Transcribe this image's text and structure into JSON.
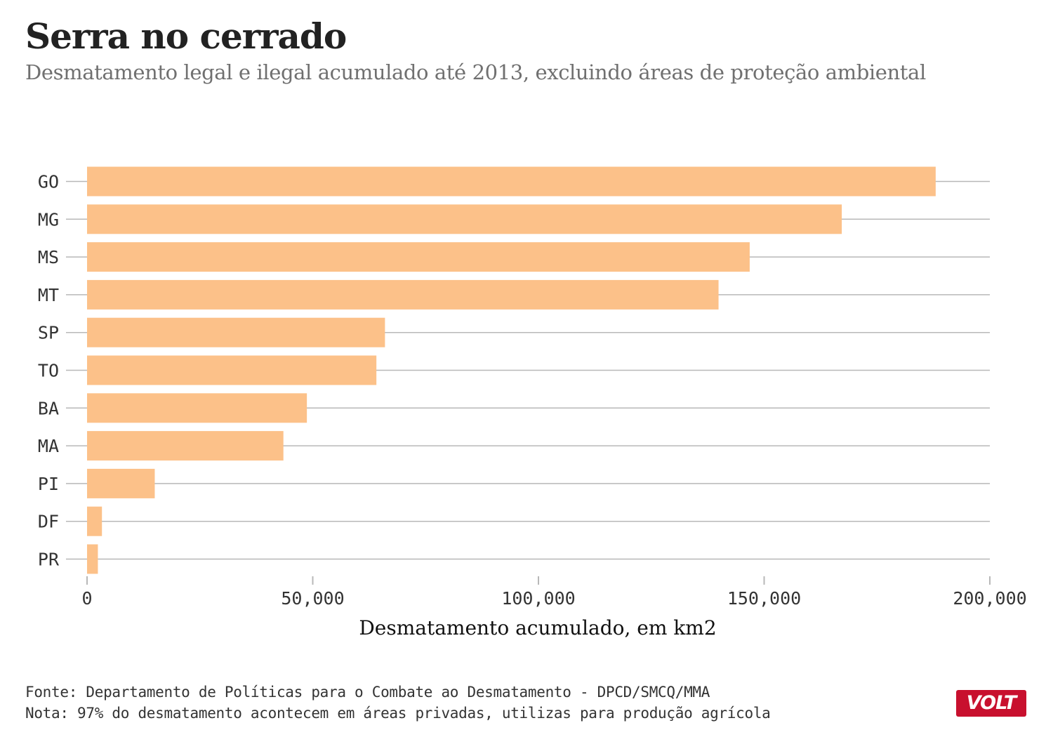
{
  "title": "Serra no cerrado",
  "subtitle": "Desmatamento legal e ilegal acumulado até 2013, excluindo áreas de proteção ambiental",
  "source": "Fonte: Departamento de Políticas para o Combate ao Desmatamento - DPCD/SMCQ/MMA",
  "note": "Nota: 97% do desmatamento acontecem em áreas privadas, utilizas para produção agrícola",
  "logo_text": "VOLT",
  "colors": {
    "bar": "#fcc189",
    "grid": "#b8b8b8",
    "logo": "#c8102e"
  },
  "chart_data": {
    "type": "bar",
    "orientation": "horizontal",
    "categories": [
      "GO",
      "MG",
      "MS",
      "MT",
      "SP",
      "TO",
      "BA",
      "MA",
      "PI",
      "DF",
      "PR"
    ],
    "values": [
      188000,
      167200,
      146800,
      139900,
      66000,
      64100,
      48700,
      43500,
      15000,
      3300,
      2400
    ],
    "xlabel": "Desmatamento acumulado, em km2",
    "ylabel": "",
    "xlim": [
      0,
      200000
    ],
    "xticks": [
      0,
      50000,
      100000,
      150000,
      200000
    ],
    "xtick_labels": [
      "0",
      "50,000",
      "100,000",
      "150,000",
      "200,000"
    ],
    "grid": true
  }
}
